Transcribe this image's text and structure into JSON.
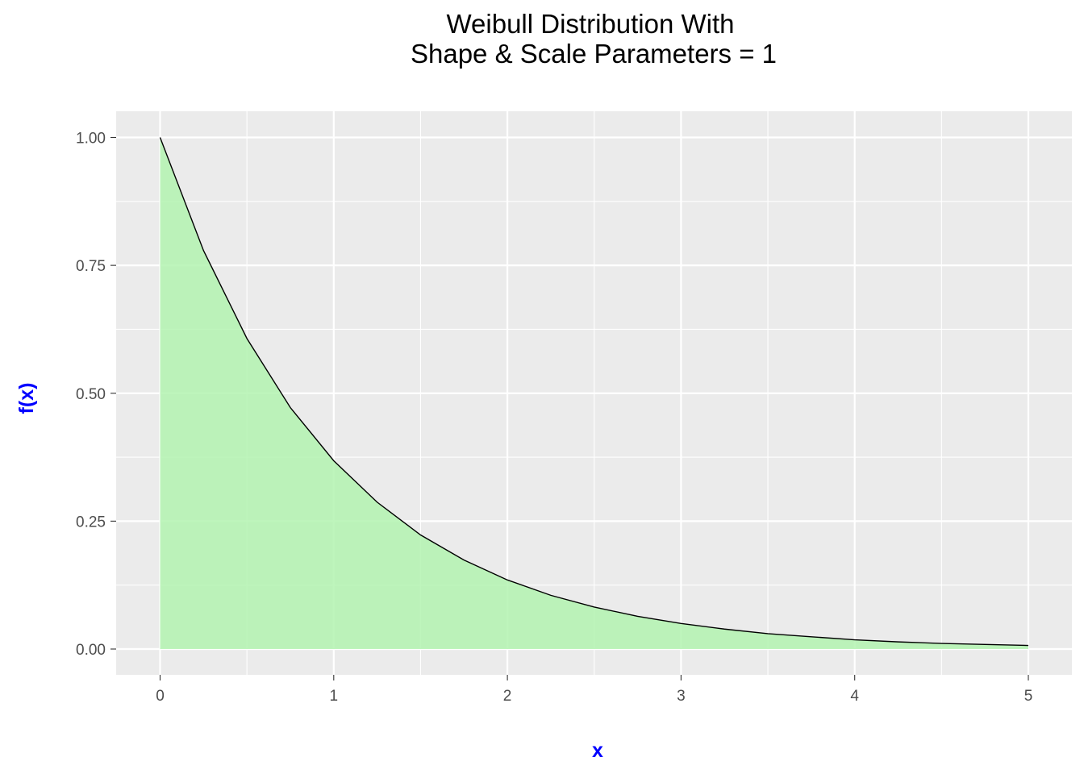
{
  "chart_data": {
    "type": "area",
    "title_lines": [
      "Weibull Distribution With",
      "Shape & Scale Parameters = 1"
    ],
    "xlabel": "x",
    "ylabel": "f(x)",
    "xlim": [
      0,
      5
    ],
    "ylim": [
      0,
      1
    ],
    "x_ticks": [
      0,
      1,
      2,
      3,
      4,
      5
    ],
    "x_tick_labels": [
      "0",
      "1",
      "2",
      "3",
      "4",
      "5"
    ],
    "y_ticks": [
      0,
      0.25,
      0.5,
      0.75,
      1
    ],
    "y_tick_labels": [
      "0.00",
      "0.25",
      "0.50",
      "0.75",
      "1.00"
    ],
    "grid": true,
    "legend": "none",
    "colors": {
      "panel_background": "#ebebeb",
      "grid_line": "#ffffff",
      "fill": "#b3f3b0",
      "line": "#000000",
      "axis_title": "#0000ff",
      "tick_text": "#4d4d4d"
    },
    "series": [
      {
        "x": [
          0,
          0.25,
          0.5,
          0.75,
          1,
          1.25,
          1.5,
          1.75,
          2,
          2.25,
          2.5,
          2.75,
          3,
          3.25,
          3.5,
          3.75,
          4,
          4.25,
          4.5,
          4.75,
          5
        ],
        "y": [
          1.0,
          0.779,
          0.607,
          0.472,
          0.368,
          0.287,
          0.223,
          0.174,
          0.135,
          0.105,
          0.082,
          0.064,
          0.05,
          0.039,
          0.03,
          0.024,
          0.018,
          0.014,
          0.011,
          0.009,
          0.007
        ]
      }
    ]
  }
}
